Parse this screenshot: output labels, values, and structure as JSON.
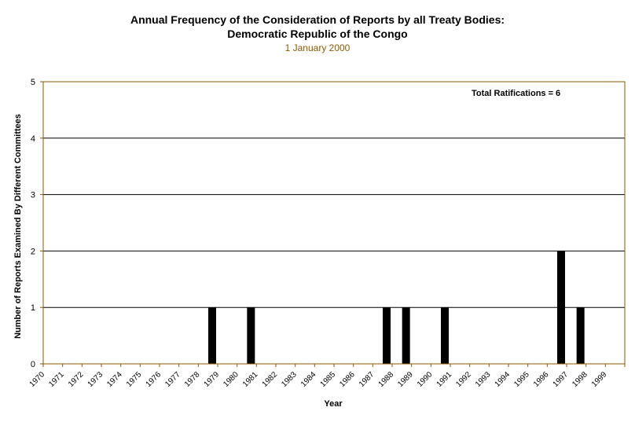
{
  "chart_data": {
    "type": "bar",
    "title_lines": [
      "Annual Frequency of the Consideration of Reports by all Treaty Bodies:",
      "Democratic Republic of the Congo"
    ],
    "subtitle": "1 January 2000",
    "xlabel": "Year",
    "ylabel": "Number of Reports Examined By Different Committees",
    "annotation": "Total Ratifications = 6",
    "ylim": [
      0,
      5
    ],
    "yticks": [
      0,
      1,
      2,
      3,
      4,
      5
    ],
    "grid": true,
    "categories": [
      "1970",
      "1971",
      "1972",
      "1973",
      "1974",
      "1975",
      "1976",
      "1977",
      "1978",
      "1979",
      "1980",
      "1981",
      "1982",
      "1983",
      "1984",
      "1985",
      "1986",
      "1987",
      "1988",
      "1989",
      "1990",
      "1991",
      "1992",
      "1993",
      "1994",
      "1995",
      "1996",
      "1997",
      "1998",
      "1999"
    ],
    "values": [
      0,
      0,
      0,
      0,
      0,
      0,
      0,
      0,
      1,
      0,
      1,
      0,
      0,
      0,
      0,
      0,
      0,
      1,
      1,
      0,
      1,
      0,
      0,
      0,
      0,
      0,
      2,
      1,
      0,
      0
    ],
    "bar_color": "#000000",
    "axis_color": "#8b5a00"
  }
}
